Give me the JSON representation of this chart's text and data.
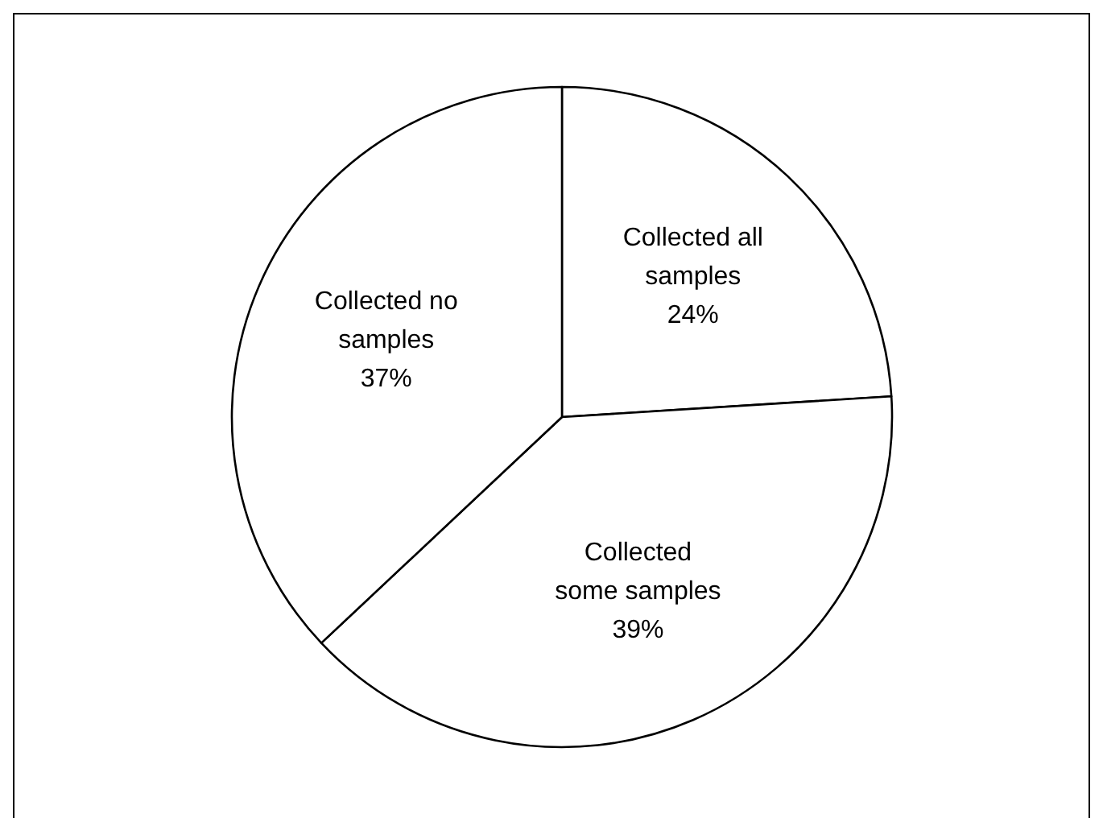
{
  "chart_data": {
    "type": "pie",
    "categories": [
      "Collected all samples",
      "Collected some samples",
      "Collected no samples"
    ],
    "values": [
      24,
      39,
      37
    ],
    "colors": [
      "#ffffff",
      "#ffffff",
      "#ffffff"
    ],
    "value_labels": [
      "24%",
      "39%",
      "37%"
    ]
  }
}
